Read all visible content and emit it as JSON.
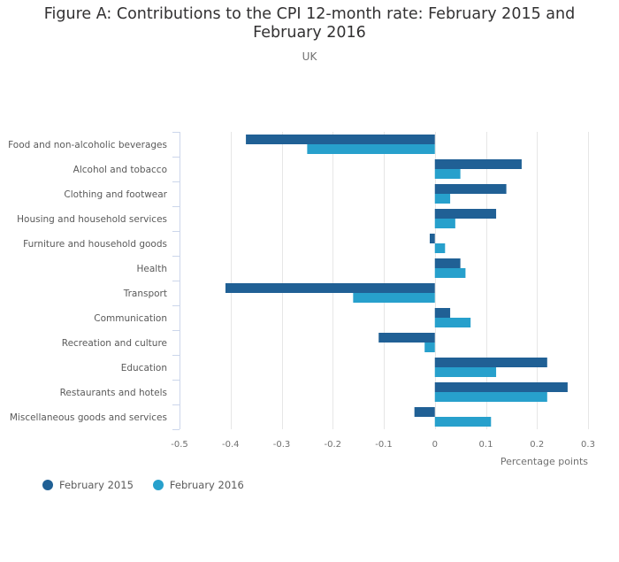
{
  "header": {
    "title_line1": "Figure A: Contributions to the CPI 12-month rate: February 2015 and",
    "title_line2": "February 2016",
    "subtitle": "UK"
  },
  "colors": {
    "series_2015": "#206095",
    "series_2016": "#27a0cc",
    "grid": "#e6e6e6",
    "axis": "#ccd6eb"
  },
  "chart_data": {
    "type": "bar",
    "orientation": "horizontal",
    "title": "Figure A: Contributions to the CPI 12-month rate: February 2015 and February 2016",
    "subtitle": "UK",
    "xlabel": "Percentage points",
    "ylabel": "",
    "xlim": [
      -0.5,
      0.3
    ],
    "xticks": [
      "-0.5",
      "-0.4",
      "-0.3",
      "-0.2",
      "-0.1",
      "0",
      "0.1",
      "0.2",
      "0.3"
    ],
    "xtick_values": [
      -0.5,
      -0.4,
      -0.3,
      -0.2,
      -0.1,
      0,
      0.1,
      0.2,
      0.3
    ],
    "grid": true,
    "legend_position": "bottom-left",
    "categories": [
      "Food and non-alcoholic beverages",
      "Alcohol and tobacco",
      "Clothing and footwear",
      "Housing and household services",
      "Furniture and household goods",
      "Health",
      "Transport",
      "Communication",
      "Recreation and culture",
      "Education",
      "Restaurants and hotels",
      "Miscellaneous goods and services"
    ],
    "series": [
      {
        "name": "February 2015",
        "values": [
          -0.37,
          0.17,
          0.14,
          0.12,
          -0.01,
          0.05,
          -0.41,
          0.03,
          -0.11,
          0.22,
          0.26,
          -0.04
        ]
      },
      {
        "name": "February 2016",
        "values": [
          -0.25,
          0.05,
          0.03,
          0.04,
          0.02,
          0.06,
          -0.16,
          0.07,
          -0.02,
          0.12,
          0.22,
          0.11
        ]
      }
    ]
  }
}
